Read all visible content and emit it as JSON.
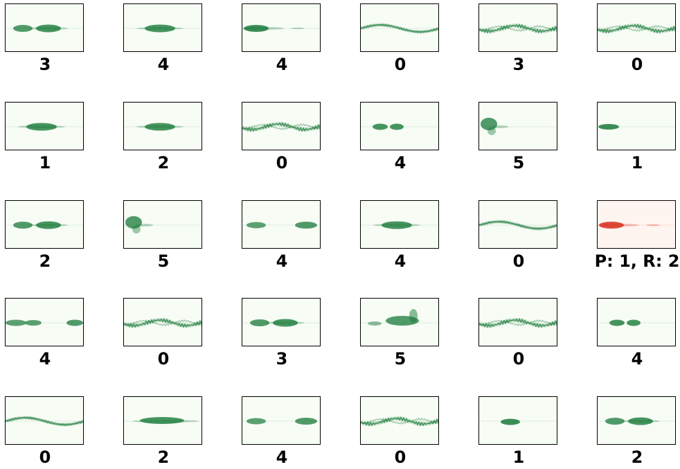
{
  "colors": {
    "green_bg": "#f7fcf5",
    "green_signal": "#1a7a3a",
    "red_bg": "#fff5f0",
    "red_signal": "#d7301f"
  },
  "panels": [
    {
      "label": "3",
      "color": "green",
      "shape": "two-blobs"
    },
    {
      "label": "4",
      "color": "green",
      "shape": "blob-center"
    },
    {
      "label": "4",
      "color": "green",
      "shape": "blob-left"
    },
    {
      "label": "0",
      "color": "green",
      "shape": "wave"
    },
    {
      "label": "3",
      "color": "green",
      "shape": "wave-busy"
    },
    {
      "label": "0",
      "color": "green",
      "shape": "wave-busy"
    },
    {
      "label": "1",
      "color": "green",
      "shape": "blob-center"
    },
    {
      "label": "2",
      "color": "green",
      "shape": "blob-center"
    },
    {
      "label": "0",
      "color": "green",
      "shape": "wave-busy"
    },
    {
      "label": "4",
      "color": "green",
      "shape": "two-blobs-small"
    },
    {
      "label": "5",
      "color": "green",
      "shape": "burst-left"
    },
    {
      "label": "1",
      "color": "green",
      "shape": "blob-left-small"
    },
    {
      "label": "2",
      "color": "green",
      "shape": "two-blobs"
    },
    {
      "label": "5",
      "color": "green",
      "shape": "burst-left"
    },
    {
      "label": "4",
      "color": "green",
      "shape": "two-blobs-far"
    },
    {
      "label": "4",
      "color": "green",
      "shape": "blob-center"
    },
    {
      "label": "0",
      "color": "green",
      "shape": "wave"
    },
    {
      "label": "P: 1, R: 2",
      "color": "red",
      "shape": "blob-left"
    },
    {
      "label": "4",
      "color": "green",
      "shape": "three-blobs"
    },
    {
      "label": "0",
      "color": "green",
      "shape": "wave-busy"
    },
    {
      "label": "3",
      "color": "green",
      "shape": "two-blobs"
    },
    {
      "label": "5",
      "color": "green",
      "shape": "peak"
    },
    {
      "label": "0",
      "color": "green",
      "shape": "wave-busy"
    },
    {
      "label": "4",
      "color": "green",
      "shape": "two-blobs-small"
    },
    {
      "label": "0",
      "color": "green",
      "shape": "wave"
    },
    {
      "label": "2",
      "color": "green",
      "shape": "blob-wide"
    },
    {
      "label": "4",
      "color": "green",
      "shape": "two-blobs-far"
    },
    {
      "label": "0",
      "color": "green",
      "shape": "wave-busy"
    },
    {
      "label": "1",
      "color": "green",
      "shape": "blob-center-small"
    },
    {
      "label": "2",
      "color": "green",
      "shape": "two-blobs"
    }
  ]
}
